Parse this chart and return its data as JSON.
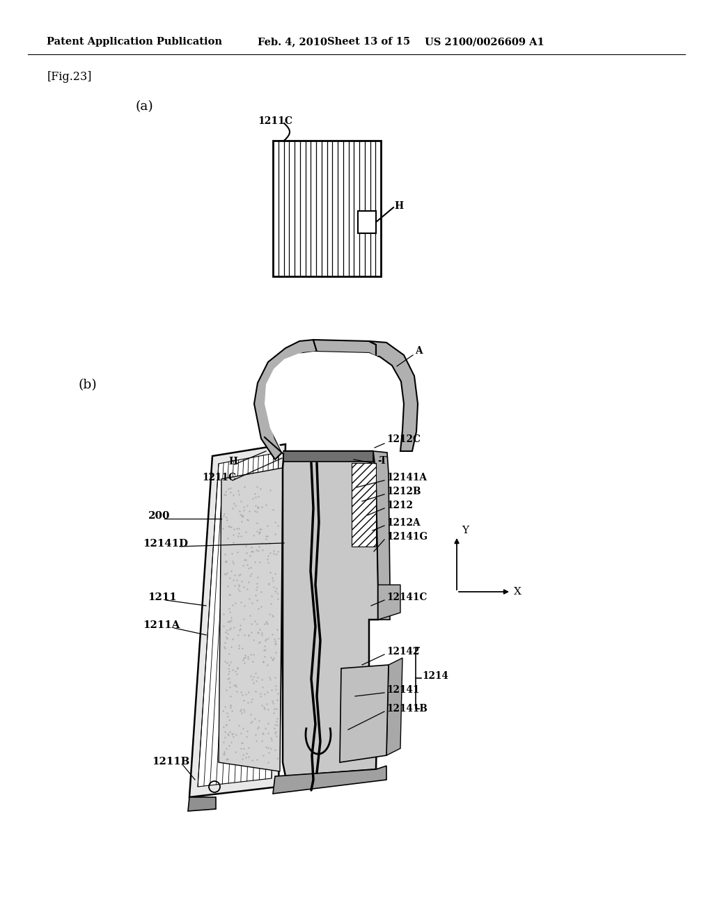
{
  "bg_color": "#ffffff",
  "text_color": "#000000",
  "header": "Patent Application Publication",
  "header_date": "Feb. 4, 2010",
  "header_sheet": "Sheet 13 of 15",
  "header_patent": "US 2100/0026609 A1",
  "fig_label": "[Fig.23]",
  "fig_a": "(a)",
  "fig_b": "(b)",
  "gray_light": "#e0e0e0",
  "gray_mid": "#c0c0c0",
  "gray_dark": "#909090",
  "gray_stipple": "#c8c8c8",
  "gray_hatch_bg": "#d8d8d8"
}
